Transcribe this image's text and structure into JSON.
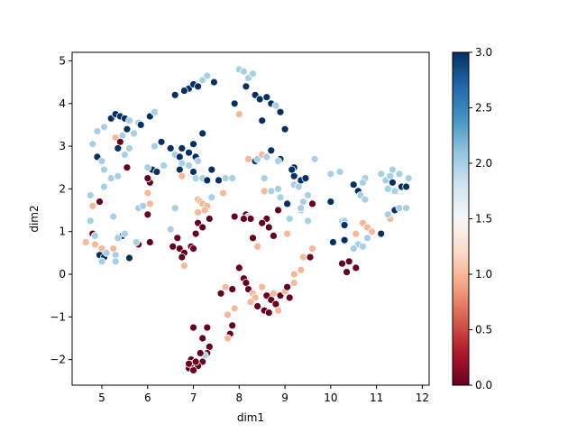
{
  "chart_data": {
    "type": "scatter",
    "title": "",
    "xlabel": "dim1",
    "ylabel": "dim2",
    "xlim": [
      4.35,
      12.15
    ],
    "ylim": [
      -2.6,
      5.2
    ],
    "xticks": [
      5,
      6,
      7,
      8,
      9,
      10,
      11,
      12
    ],
    "yticks": [
      -2,
      -1,
      0,
      1,
      2,
      3,
      4,
      5
    ],
    "grid": false,
    "colorbar": {
      "cmap": "RdBu",
      "vmin": 0.0,
      "vmax": 3.0,
      "ticks": [
        "0.0",
        "0.5",
        "1.0",
        "1.5",
        "2.0",
        "2.5",
        "3.0"
      ],
      "tick_values": [
        0.0,
        0.5,
        1.0,
        1.5,
        2.0,
        2.5,
        3.0
      ]
    },
    "marker_edge_color": "#ffffff",
    "points": [
      {
        "x": 6.9,
        "y": 4.35,
        "c": 3
      },
      {
        "x": 7.0,
        "y": 4.45,
        "c": 3
      },
      {
        "x": 7.1,
        "y": 4.4,
        "c": 3
      },
      {
        "x": 6.8,
        "y": 4.3,
        "c": 3
      },
      {
        "x": 7.2,
        "y": 4.55,
        "c": 2
      },
      {
        "x": 7.3,
        "y": 4.65,
        "c": 2
      },
      {
        "x": 7.45,
        "y": 4.5,
        "c": 3
      },
      {
        "x": 6.6,
        "y": 4.2,
        "c": 3
      },
      {
        "x": 7.9,
        "y": 4.0,
        "c": 3
      },
      {
        "x": 8.0,
        "y": 4.8,
        "c": 2
      },
      {
        "x": 8.1,
        "y": 4.75,
        "c": 2
      },
      {
        "x": 8.2,
        "y": 4.6,
        "c": 2
      },
      {
        "x": 8.3,
        "y": 4.7,
        "c": 2
      },
      {
        "x": 8.15,
        "y": 4.4,
        "c": 3
      },
      {
        "x": 8.35,
        "y": 4.2,
        "c": 3
      },
      {
        "x": 8.45,
        "y": 4.1,
        "c": 3
      },
      {
        "x": 8.6,
        "y": 4.15,
        "c": 3
      },
      {
        "x": 8.7,
        "y": 4.0,
        "c": 3
      },
      {
        "x": 8.8,
        "y": 3.95,
        "c": 2
      },
      {
        "x": 8.9,
        "y": 3.8,
        "c": 3
      },
      {
        "x": 8.5,
        "y": 3.6,
        "c": 3
      },
      {
        "x": 8.0,
        "y": 3.75,
        "c": 1
      },
      {
        "x": 9.0,
        "y": 3.4,
        "c": 3
      },
      {
        "x": 5.2,
        "y": 3.65,
        "c": 3
      },
      {
        "x": 5.3,
        "y": 3.75,
        "c": 3
      },
      {
        "x": 5.4,
        "y": 3.7,
        "c": 3
      },
      {
        "x": 5.5,
        "y": 3.65,
        "c": 3
      },
      {
        "x": 5.6,
        "y": 3.6,
        "c": 2
      },
      {
        "x": 5.8,
        "y": 3.55,
        "c": 2
      },
      {
        "x": 6.05,
        "y": 3.7,
        "c": 3
      },
      {
        "x": 6.15,
        "y": 3.8,
        "c": 2
      },
      {
        "x": 5.85,
        "y": 3.5,
        "c": 3
      },
      {
        "x": 5.05,
        "y": 3.45,
        "c": 2
      },
      {
        "x": 4.9,
        "y": 3.35,
        "c": 2
      },
      {
        "x": 5.55,
        "y": 3.4,
        "c": 3
      },
      {
        "x": 5.7,
        "y": 3.3,
        "c": 2
      },
      {
        "x": 5.45,
        "y": 3.25,
        "c": 2
      },
      {
        "x": 5.3,
        "y": 3.2,
        "c": 1
      },
      {
        "x": 5.4,
        "y": 3.1,
        "c": 0
      },
      {
        "x": 5.35,
        "y": 2.95,
        "c": 3
      },
      {
        "x": 5.6,
        "y": 2.95,
        "c": 2
      },
      {
        "x": 5.5,
        "y": 2.8,
        "c": 2
      },
      {
        "x": 4.8,
        "y": 3.05,
        "c": 2
      },
      {
        "x": 4.9,
        "y": 2.75,
        "c": 3
      },
      {
        "x": 5.0,
        "y": 2.65,
        "c": 2
      },
      {
        "x": 5.05,
        "y": 2.45,
        "c": 2
      },
      {
        "x": 5.55,
        "y": 2.5,
        "c": 0
      },
      {
        "x": 5.35,
        "y": 2.3,
        "c": 2
      },
      {
        "x": 5.2,
        "y": 2.25,
        "c": 2
      },
      {
        "x": 5.05,
        "y": 2.05,
        "c": 2
      },
      {
        "x": 4.75,
        "y": 1.85,
        "c": 2
      },
      {
        "x": 4.95,
        "y": 1.7,
        "c": 0
      },
      {
        "x": 5.25,
        "y": 1.35,
        "c": 2
      },
      {
        "x": 4.75,
        "y": 1.25,
        "c": 2
      },
      {
        "x": 4.8,
        "y": 0.95,
        "c": 0
      },
      {
        "x": 4.85,
        "y": 0.9,
        "c": 2
      },
      {
        "x": 4.65,
        "y": 0.75,
        "c": 1
      },
      {
        "x": 4.85,
        "y": 0.7,
        "c": 1
      },
      {
        "x": 5.0,
        "y": 0.6,
        "c": 1
      },
      {
        "x": 4.95,
        "y": 0.45,
        "c": 3
      },
      {
        "x": 5.05,
        "y": 0.4,
        "c": 3
      },
      {
        "x": 5.1,
        "y": 0.5,
        "c": 2
      },
      {
        "x": 5.0,
        "y": 0.3,
        "c": 2
      },
      {
        "x": 5.3,
        "y": 0.45,
        "c": 2
      },
      {
        "x": 5.3,
        "y": 0.3,
        "c": 2
      },
      {
        "x": 5.45,
        "y": 0.9,
        "c": 3
      },
      {
        "x": 5.35,
        "y": 0.85,
        "c": 2
      },
      {
        "x": 5.5,
        "y": 0.95,
        "c": 2
      },
      {
        "x": 5.25,
        "y": 0.6,
        "c": 1
      },
      {
        "x": 5.6,
        "y": 0.38,
        "c": 3
      },
      {
        "x": 4.8,
        "y": 1.6,
        "c": 1
      },
      {
        "x": 5.8,
        "y": 0.7,
        "c": 0
      },
      {
        "x": 5.75,
        "y": 0.75,
        "c": 2
      },
      {
        "x": 6.05,
        "y": 0.75,
        "c": 0
      },
      {
        "x": 5.8,
        "y": 1.55,
        "c": 2
      },
      {
        "x": 5.9,
        "y": 1.6,
        "c": 2
      },
      {
        "x": 6.0,
        "y": 1.4,
        "c": 0
      },
      {
        "x": 6.05,
        "y": 1.65,
        "c": 1
      },
      {
        "x": 6.0,
        "y": 1.9,
        "c": 1
      },
      {
        "x": 6.05,
        "y": 2.15,
        "c": 0
      },
      {
        "x": 6.0,
        "y": 2.25,
        "c": 0
      },
      {
        "x": 6.1,
        "y": 2.45,
        "c": 3
      },
      {
        "x": 6.2,
        "y": 2.4,
        "c": 3
      },
      {
        "x": 6.0,
        "y": 2.5,
        "c": 2
      },
      {
        "x": 6.35,
        "y": 2.55,
        "c": 2
      },
      {
        "x": 6.3,
        "y": 3.1,
        "c": 3
      },
      {
        "x": 6.15,
        "y": 3.0,
        "c": 2
      },
      {
        "x": 6.5,
        "y": 2.95,
        "c": 3
      },
      {
        "x": 6.6,
        "y": 2.8,
        "c": 2
      },
      {
        "x": 6.7,
        "y": 2.75,
        "c": 3
      },
      {
        "x": 6.75,
        "y": 2.95,
        "c": 3
      },
      {
        "x": 6.9,
        "y": 2.85,
        "c": 3
      },
      {
        "x": 7.0,
        "y": 3.05,
        "c": 3
      },
      {
        "x": 7.05,
        "y": 2.75,
        "c": 3
      },
      {
        "x": 7.1,
        "y": 2.65,
        "c": 2
      },
      {
        "x": 6.9,
        "y": 2.55,
        "c": 2
      },
      {
        "x": 6.75,
        "y": 2.6,
        "c": 2
      },
      {
        "x": 6.7,
        "y": 2.45,
        "c": 3
      },
      {
        "x": 6.75,
        "y": 2.3,
        "c": 1
      },
      {
        "x": 7.0,
        "y": 2.4,
        "c": 3
      },
      {
        "x": 7.05,
        "y": 2.25,
        "c": 2
      },
      {
        "x": 7.2,
        "y": 2.25,
        "c": 2
      },
      {
        "x": 7.3,
        "y": 2.2,
        "c": 3
      },
      {
        "x": 7.4,
        "y": 2.45,
        "c": 3
      },
      {
        "x": 7.2,
        "y": 3.3,
        "c": 3
      },
      {
        "x": 6.6,
        "y": 1.55,
        "c": 2
      },
      {
        "x": 6.5,
        "y": 1.05,
        "c": 2
      },
      {
        "x": 6.65,
        "y": 0.85,
        "c": 0
      },
      {
        "x": 6.55,
        "y": 0.65,
        "c": 0
      },
      {
        "x": 6.7,
        "y": 0.6,
        "c": 0
      },
      {
        "x": 6.8,
        "y": 0.5,
        "c": 0
      },
      {
        "x": 6.75,
        "y": 0.4,
        "c": 0
      },
      {
        "x": 6.95,
        "y": 0.65,
        "c": 0
      },
      {
        "x": 7.0,
        "y": 0.6,
        "c": 0
      },
      {
        "x": 6.8,
        "y": 0.2,
        "c": 1
      },
      {
        "x": 7.05,
        "y": 0.95,
        "c": 0
      },
      {
        "x": 7.1,
        "y": 1.2,
        "c": 0
      },
      {
        "x": 7.2,
        "y": 1.1,
        "c": 0
      },
      {
        "x": 7.35,
        "y": 1.3,
        "c": 0
      },
      {
        "x": 7.1,
        "y": 1.75,
        "c": 1
      },
      {
        "x": 7.15,
        "y": 1.7,
        "c": 1
      },
      {
        "x": 7.2,
        "y": 1.65,
        "c": 1
      },
      {
        "x": 7.3,
        "y": 1.6,
        "c": 1
      },
      {
        "x": 7.25,
        "y": 1.5,
        "c": 1
      },
      {
        "x": 7.1,
        "y": 1.45,
        "c": 1
      },
      {
        "x": 7.4,
        "y": 1.8,
        "c": 2
      },
      {
        "x": 7.55,
        "y": 2.2,
        "c": 3
      },
      {
        "x": 7.7,
        "y": 2.25,
        "c": 2
      },
      {
        "x": 7.85,
        "y": 2.25,
        "c": 2
      },
      {
        "x": 7.65,
        "y": 1.9,
        "c": 1
      },
      {
        "x": 7.9,
        "y": 1.35,
        "c": 0
      },
      {
        "x": 8.15,
        "y": 1.4,
        "c": 0
      },
      {
        "x": 8.2,
        "y": 1.35,
        "c": 2
      },
      {
        "x": 8.25,
        "y": 1.3,
        "c": 0
      },
      {
        "x": 8.1,
        "y": 1.3,
        "c": 0
      },
      {
        "x": 8.2,
        "y": 2.7,
        "c": 1
      },
      {
        "x": 8.35,
        "y": 2.65,
        "c": 3
      },
      {
        "x": 8.4,
        "y": 2.7,
        "c": 2
      },
      {
        "x": 8.5,
        "y": 2.8,
        "c": 1
      },
      {
        "x": 8.6,
        "y": 2.75,
        "c": 2
      },
      {
        "x": 8.7,
        "y": 2.9,
        "c": 3
      },
      {
        "x": 8.9,
        "y": 2.7,
        "c": 3
      },
      {
        "x": 8.85,
        "y": 2.65,
        "c": 2
      },
      {
        "x": 8.55,
        "y": 2.25,
        "c": 2
      },
      {
        "x": 8.55,
        "y": 1.95,
        "c": 1
      },
      {
        "x": 8.7,
        "y": 1.95,
        "c": 2
      },
      {
        "x": 8.85,
        "y": 2.0,
        "c": 2
      },
      {
        "x": 8.9,
        "y": 1.8,
        "c": 2
      },
      {
        "x": 8.85,
        "y": 1.5,
        "c": 0
      },
      {
        "x": 8.6,
        "y": 1.3,
        "c": 0
      },
      {
        "x": 8.5,
        "y": 1.2,
        "c": 0
      },
      {
        "x": 8.65,
        "y": 1.1,
        "c": 0
      },
      {
        "x": 8.75,
        "y": 0.9,
        "c": 0
      },
      {
        "x": 8.3,
        "y": 0.85,
        "c": 0
      },
      {
        "x": 8.4,
        "y": 0.65,
        "c": 1
      },
      {
        "x": 9.05,
        "y": 0.95,
        "c": 1
      },
      {
        "x": 9.05,
        "y": 1.65,
        "c": 3
      },
      {
        "x": 9.1,
        "y": 1.3,
        "c": 2
      },
      {
        "x": 9.2,
        "y": 2.1,
        "c": 2
      },
      {
        "x": 9.3,
        "y": 2.05,
        "c": 2
      },
      {
        "x": 9.2,
        "y": 2.3,
        "c": 3
      },
      {
        "x": 9.35,
        "y": 2.2,
        "c": 3
      },
      {
        "x": 9.45,
        "y": 2.25,
        "c": 3
      },
      {
        "x": 9.2,
        "y": 2.5,
        "c": 3
      },
      {
        "x": 9.15,
        "y": 2.45,
        "c": 3
      },
      {
        "x": 9.4,
        "y": 1.7,
        "c": 2
      },
      {
        "x": 9.35,
        "y": 1.5,
        "c": 2
      },
      {
        "x": 9.5,
        "y": 1.85,
        "c": 2
      },
      {
        "x": 9.6,
        "y": 1.65,
        "c": 0
      },
      {
        "x": 9.5,
        "y": 1.25,
        "c": 2
      },
      {
        "x": 9.35,
        "y": 1.55,
        "c": 2
      },
      {
        "x": 9.65,
        "y": 2.7,
        "c": 2
      },
      {
        "x": 9.6,
        "y": 0.6,
        "c": 1
      },
      {
        "x": 9.4,
        "y": 0.4,
        "c": 1
      },
      {
        "x": 9.55,
        "y": 0.4,
        "c": 0
      },
      {
        "x": 9.35,
        "y": 0.1,
        "c": 1
      },
      {
        "x": 9.2,
        "y": 0.0,
        "c": 1
      },
      {
        "x": 8.0,
        "y": 0.15,
        "c": 0
      },
      {
        "x": 8.1,
        "y": -0.1,
        "c": 0
      },
      {
        "x": 8.15,
        "y": -0.2,
        "c": 0
      },
      {
        "x": 8.2,
        "y": -0.35,
        "c": 0
      },
      {
        "x": 8.3,
        "y": -0.45,
        "c": 1
      },
      {
        "x": 8.35,
        "y": -0.55,
        "c": 1
      },
      {
        "x": 8.25,
        "y": -0.65,
        "c": 1
      },
      {
        "x": 8.4,
        "y": -0.75,
        "c": 0
      },
      {
        "x": 8.5,
        "y": -0.3,
        "c": 1
      },
      {
        "x": 8.6,
        "y": -0.5,
        "c": 0
      },
      {
        "x": 8.7,
        "y": -0.6,
        "c": 0
      },
      {
        "x": 8.75,
        "y": -0.45,
        "c": 1
      },
      {
        "x": 8.55,
        "y": -0.85,
        "c": 0
      },
      {
        "x": 8.65,
        "y": -0.9,
        "c": 0
      },
      {
        "x": 8.8,
        "y": -0.7,
        "c": 0
      },
      {
        "x": 8.9,
        "y": -0.5,
        "c": 0
      },
      {
        "x": 8.85,
        "y": -0.85,
        "c": 1
      },
      {
        "x": 9.0,
        "y": -0.4,
        "c": 1
      },
      {
        "x": 9.05,
        "y": -0.3,
        "c": 0
      },
      {
        "x": 9.1,
        "y": -0.55,
        "c": 0
      },
      {
        "x": 9.2,
        "y": -0.2,
        "c": 1
      },
      {
        "x": 7.6,
        "y": -0.45,
        "c": 0
      },
      {
        "x": 7.7,
        "y": -0.3,
        "c": 1
      },
      {
        "x": 7.85,
        "y": -0.35,
        "c": 0
      },
      {
        "x": 7.9,
        "y": -0.8,
        "c": 1
      },
      {
        "x": 7.75,
        "y": -0.95,
        "c": 1
      },
      {
        "x": 7.85,
        "y": -1.2,
        "c": 0
      },
      {
        "x": 7.8,
        "y": -1.4,
        "c": 0
      },
      {
        "x": 7.75,
        "y": -1.5,
        "c": 1
      },
      {
        "x": 7.0,
        "y": -1.25,
        "c": 0
      },
      {
        "x": 7.3,
        "y": -1.25,
        "c": 0
      },
      {
        "x": 7.2,
        "y": -1.5,
        "c": 0
      },
      {
        "x": 7.35,
        "y": -1.7,
        "c": 0
      },
      {
        "x": 7.3,
        "y": -1.85,
        "c": 0
      },
      {
        "x": 7.25,
        "y": -1.9,
        "c": 2
      },
      {
        "x": 7.15,
        "y": -1.85,
        "c": 0
      },
      {
        "x": 7.2,
        "y": -2.05,
        "c": 0
      },
      {
        "x": 7.1,
        "y": -2.15,
        "c": 0
      },
      {
        "x": 6.95,
        "y": -2.0,
        "c": 0
      },
      {
        "x": 6.9,
        "y": -2.2,
        "c": 0
      },
      {
        "x": 7.0,
        "y": -2.25,
        "c": 0
      },
      {
        "x": 6.95,
        "y": -2.1,
        "c": 0
      },
      {
        "x": 7.05,
        "y": -2.05,
        "c": 0
      },
      {
        "x": 6.9,
        "y": -2.1,
        "c": 0
      },
      {
        "x": 10.0,
        "y": 1.7,
        "c": 3
      },
      {
        "x": 10.0,
        "y": 2.35,
        "c": 2
      },
      {
        "x": 10.2,
        "y": 2.4,
        "c": 2
      },
      {
        "x": 10.25,
        "y": 1.25,
        "c": 2
      },
      {
        "x": 10.3,
        "y": 1.25,
        "c": 2
      },
      {
        "x": 10.3,
        "y": 1.15,
        "c": 3
      },
      {
        "x": 10.05,
        "y": 0.75,
        "c": 3
      },
      {
        "x": 10.3,
        "y": 0.8,
        "c": 3
      },
      {
        "x": 10.5,
        "y": 2.1,
        "c": 3
      },
      {
        "x": 10.6,
        "y": 1.95,
        "c": 3
      },
      {
        "x": 10.75,
        "y": 2.25,
        "c": 2
      },
      {
        "x": 10.7,
        "y": 2.15,
        "c": 2
      },
      {
        "x": 10.65,
        "y": 1.85,
        "c": 2
      },
      {
        "x": 10.75,
        "y": 1.75,
        "c": 2
      },
      {
        "x": 10.7,
        "y": 1.2,
        "c": 1
      },
      {
        "x": 10.8,
        "y": 1.1,
        "c": 1
      },
      {
        "x": 10.9,
        "y": 1.0,
        "c": 1
      },
      {
        "x": 10.8,
        "y": 0.85,
        "c": 2
      },
      {
        "x": 10.55,
        "y": 0.95,
        "c": 1
      },
      {
        "x": 10.6,
        "y": 0.7,
        "c": 2
      },
      {
        "x": 10.7,
        "y": 0.65,
        "c": 2
      },
      {
        "x": 10.5,
        "y": 0.6,
        "c": 2
      },
      {
        "x": 10.25,
        "y": 0.25,
        "c": 0
      },
      {
        "x": 10.4,
        "y": 0.3,
        "c": 0
      },
      {
        "x": 10.35,
        "y": 0.05,
        "c": 0
      },
      {
        "x": 10.55,
        "y": 0.15,
        "c": 0
      },
      {
        "x": 11.1,
        "y": 2.35,
        "c": 2
      },
      {
        "x": 11.2,
        "y": 2.2,
        "c": 2
      },
      {
        "x": 11.3,
        "y": 2.3,
        "c": 2
      },
      {
        "x": 11.35,
        "y": 2.15,
        "c": 3
      },
      {
        "x": 11.25,
        "y": 2.0,
        "c": 2
      },
      {
        "x": 11.4,
        "y": 1.95,
        "c": 2
      },
      {
        "x": 11.5,
        "y": 2.35,
        "c": 2
      },
      {
        "x": 11.55,
        "y": 2.05,
        "c": 3
      },
      {
        "x": 11.65,
        "y": 2.05,
        "c": 3
      },
      {
        "x": 11.7,
        "y": 2.25,
        "c": 2
      },
      {
        "x": 11.35,
        "y": 2.45,
        "c": 2
      },
      {
        "x": 11.4,
        "y": 1.5,
        "c": 3
      },
      {
        "x": 11.5,
        "y": 1.55,
        "c": 2
      },
      {
        "x": 11.65,
        "y": 1.55,
        "c": 2
      },
      {
        "x": 11.3,
        "y": 1.3,
        "c": 1
      },
      {
        "x": 11.25,
        "y": 1.4,
        "c": 2
      },
      {
        "x": 11.1,
        "y": 0.95,
        "c": 3
      }
    ]
  }
}
